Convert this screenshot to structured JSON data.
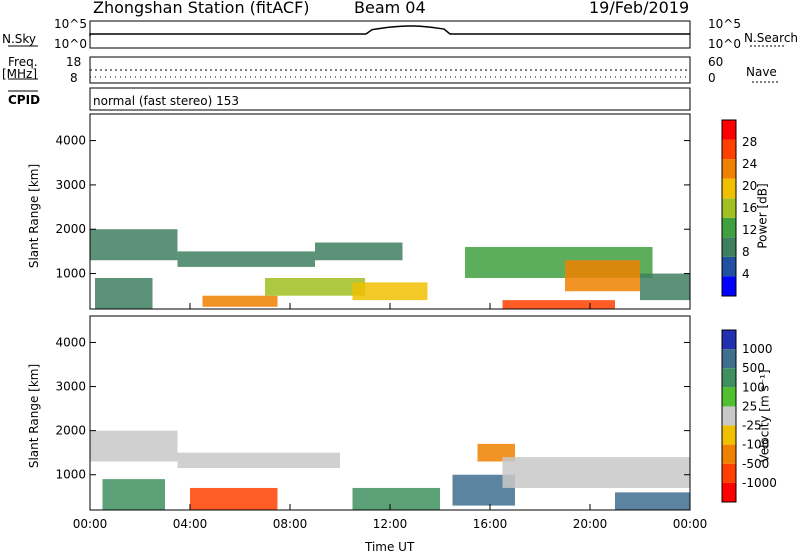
{
  "header": {
    "station": "Zhongshan Station (fitACF)",
    "beam": "Beam 04",
    "date": "19/Feb/2019"
  },
  "top_panels": {
    "nsky_label": "N.Sky",
    "nsky_ticks": [
      "10^5",
      "10^0"
    ],
    "nsearch_label": "N.Search",
    "nsearch_ticks": [
      "10^5",
      "10^0"
    ],
    "freq_label": "Freq.",
    "freq_unit": "[MHz]",
    "freq_ticks": [
      "18",
      "8"
    ],
    "nave_label": "Nave",
    "nave_ticks": [
      "60",
      "0"
    ],
    "cpid_label": "CPID",
    "cpid_text": "normal (fast stereo) 153"
  },
  "colors": {
    "power": [
      "#0000ff",
      "#2050a0",
      "#3f7f5f",
      "#3fa03f",
      "#a0c020",
      "#f0c000",
      "#f08000",
      "#ff4000",
      "#ff0000"
    ],
    "velocity": [
      "#2030b0",
      "#3f6f8f",
      "#3f8f5f",
      "#50c030",
      "#c8c8c8",
      "#f0c000",
      "#f08000",
      "#ff4000",
      "#ff0000"
    ]
  },
  "chart_data": [
    {
      "type": "heatmap",
      "name": "power",
      "ylabel": "Slant Range [km]",
      "yticks": [
        "1000",
        "2000",
        "3000",
        "4000"
      ],
      "ylim": [
        200,
        4600
      ],
      "xlim": [
        0,
        24
      ],
      "xticks": [
        "00:00",
        "04:00",
        "08:00",
        "12:00",
        "16:00",
        "20:00",
        "00:00"
      ],
      "colorbar_label": "Power [dB]",
      "colorbar_ticks": [
        "4",
        "8",
        "12",
        "16",
        "20",
        "24",
        "28"
      ],
      "colorbar_range": [
        0,
        32
      ],
      "features": [
        {
          "t0": 0.0,
          "t1": 3.5,
          "r0": 1300,
          "r1": 2000,
          "level": 8
        },
        {
          "t0": 0.2,
          "t1": 2.5,
          "r0": 200,
          "r1": 900,
          "level": 10
        },
        {
          "t0": 3.5,
          "t1": 9.0,
          "r0": 1150,
          "r1": 1500,
          "level": 8
        },
        {
          "t0": 4.5,
          "t1": 7.5,
          "r0": 250,
          "r1": 500,
          "level": 22
        },
        {
          "t0": 7.0,
          "t1": 11.0,
          "r0": 500,
          "r1": 900,
          "level": 16
        },
        {
          "t0": 9.0,
          "t1": 12.5,
          "r0": 1300,
          "r1": 1700,
          "level": 8
        },
        {
          "t0": 10.5,
          "t1": 13.5,
          "r0": 400,
          "r1": 800,
          "level": 20
        },
        {
          "t0": 15.0,
          "t1": 22.5,
          "r0": 900,
          "r1": 1600,
          "level": 12
        },
        {
          "t0": 16.5,
          "t1": 21.0,
          "r0": 200,
          "r1": 400,
          "level": 26
        },
        {
          "t0": 19.0,
          "t1": 22.0,
          "r0": 600,
          "r1": 1300,
          "level": 24
        },
        {
          "t0": 22.0,
          "t1": 24.0,
          "r0": 400,
          "r1": 1000,
          "level": 10
        }
      ]
    },
    {
      "type": "heatmap",
      "name": "velocity",
      "ylabel": "Slant Range [km]",
      "yticks": [
        "1000",
        "2000",
        "3000",
        "4000"
      ],
      "ylim": [
        200,
        4600
      ],
      "xlim": [
        0,
        24
      ],
      "xticks": [
        "00:00",
        "04:00",
        "08:00",
        "12:00",
        "16:00",
        "20:00",
        "00:00"
      ],
      "xlabel": "Time UT",
      "colorbar_label": "Velocity [m s⁻¹]",
      "colorbar_ticks": [
        "1000",
        "500",
        "100",
        "25",
        "-25",
        "-100",
        "-500",
        "-1000"
      ],
      "features": [
        {
          "t0": 0.0,
          "t1": 3.5,
          "r0": 1300,
          "r1": 2000,
          "level": 4
        },
        {
          "t0": 0.5,
          "t1": 3.0,
          "r0": 200,
          "r1": 900,
          "level": 2
        },
        {
          "t0": 4.0,
          "t1": 7.5,
          "r0": 200,
          "r1": 700,
          "level": 7
        },
        {
          "t0": 3.5,
          "t1": 10.0,
          "r0": 1150,
          "r1": 1500,
          "level": 4
        },
        {
          "t0": 10.5,
          "t1": 14.0,
          "r0": 200,
          "r1": 700,
          "level": 2
        },
        {
          "t0": 14.5,
          "t1": 17.0,
          "r0": 300,
          "r1": 1000,
          "level": 1
        },
        {
          "t0": 15.5,
          "t1": 17.0,
          "r0": 1300,
          "r1": 1700,
          "level": 6
        },
        {
          "t0": 16.5,
          "t1": 24.0,
          "r0": 700,
          "r1": 1400,
          "level": 4
        },
        {
          "t0": 21.0,
          "t1": 24.0,
          "r0": 200,
          "r1": 600,
          "level": 1
        }
      ]
    }
  ]
}
